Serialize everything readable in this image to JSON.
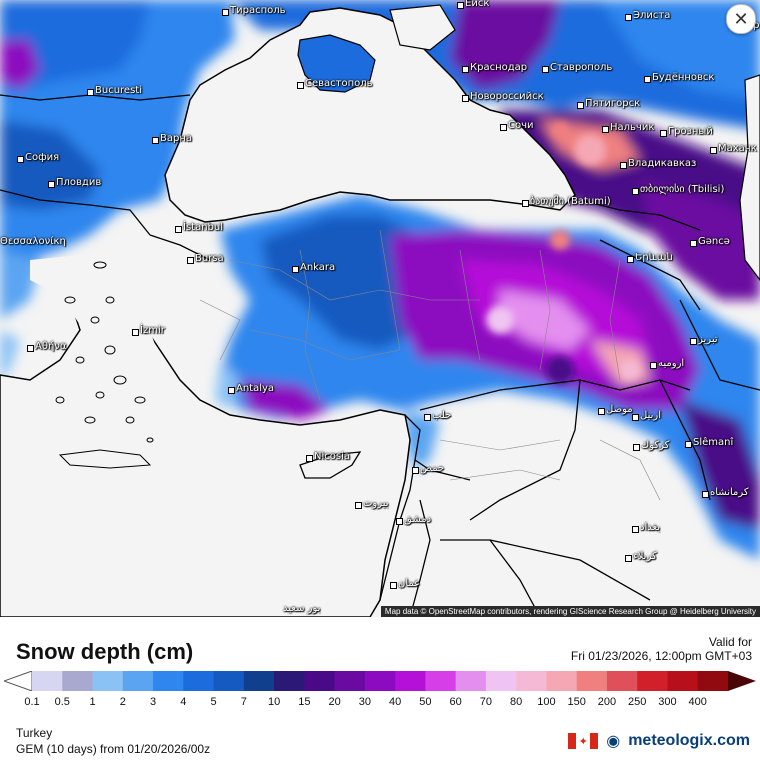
{
  "map": {
    "cities": [
      {
        "name": "Тирасполь",
        "dot": true
      },
      {
        "name": "Еиск",
        "dot": true
      },
      {
        "name": "Элиста",
        "dot": true
      },
      {
        "name": "Астр",
        "dot": false
      },
      {
        "name": "Bucuresti",
        "dot": true
      },
      {
        "name": "Севастополь",
        "dot": true
      },
      {
        "name": "Краснодар",
        "dot": true
      },
      {
        "name": "Ставрополь",
        "dot": true
      },
      {
        "name": "Будённовск",
        "dot": true
      },
      {
        "name": "Новороссийск",
        "dot": true
      },
      {
        "name": "Пятигорск",
        "dot": true
      },
      {
        "name": "Варна",
        "dot": true
      },
      {
        "name": "Сочи",
        "dot": true
      },
      {
        "name": "Нальчик",
        "dot": true
      },
      {
        "name": "Грозный",
        "dot": true
      },
      {
        "name": "Махачк",
        "dot": true
      },
      {
        "name": "София",
        "dot": true
      },
      {
        "name": "Владикавказ",
        "dot": true
      },
      {
        "name": "Пловдив",
        "dot": true
      },
      {
        "name": "ბათუმი (Batumi)",
        "dot": true
      },
      {
        "name": "თბილისი (Tbilisi)",
        "dot": true
      },
      {
        "name": "Θεσσαλονίκη",
        "dot": true
      },
      {
        "name": "İstanbul",
        "dot": true
      },
      {
        "name": "Gəncə",
        "dot": true
      },
      {
        "name": "Bursa",
        "dot": true
      },
      {
        "name": "Ankara",
        "dot": true
      },
      {
        "name": "Երևան",
        "dot": true
      },
      {
        "name": "İzmir",
        "dot": true
      },
      {
        "name": "Αθήνα",
        "dot": true
      },
      {
        "name": "تبریز",
        "dot": true
      },
      {
        "name": "Antalya",
        "dot": true
      },
      {
        "name": "حلب",
        "dot": true
      },
      {
        "name": "ارومیه",
        "dot": true
      },
      {
        "name": "موصل",
        "dot": true
      },
      {
        "name": "اربيل",
        "dot": true
      },
      {
        "name": "Nicosia",
        "dot": true
      },
      {
        "name": "حمص",
        "dot": true
      },
      {
        "name": "كركوك",
        "dot": true
      },
      {
        "name": "Slêmanî",
        "dot": true
      },
      {
        "name": "كرمانشاه",
        "dot": true
      },
      {
        "name": "بيروت",
        "dot": true
      },
      {
        "name": "دمشق",
        "dot": true
      },
      {
        "name": "بغداد",
        "dot": true
      },
      {
        "name": "كربلاء",
        "dot": true
      },
      {
        "name": "عمان",
        "dot": true
      },
      {
        "name": "بور سعيد",
        "dot": false
      }
    ],
    "attribution": "Map data © OpenStreetMap contributors, rendering GIScience Research Group @ Heidelberg University",
    "close_symbol": "✕",
    "colors": {
      "land": "#f4f4f4",
      "sea": "#f4f4f4",
      "border": "#000000"
    }
  },
  "legend": {
    "title": "Snow depth (cm)",
    "valid_label": "Valid for",
    "valid_value": "Fri 01/23/2026, 12:00pm GMT+03",
    "scale_labels": [
      "0.1",
      "0.5",
      "1",
      "2",
      "3",
      "4",
      "5",
      "7",
      "10",
      "15",
      "20",
      "30",
      "40",
      "50",
      "60",
      "70",
      "80",
      "100",
      "150",
      "200",
      "250",
      "300",
      "400"
    ],
    "scale_colors": [
      "#d6d6f2",
      "#a9a9cf",
      "#8ac2f5",
      "#5aa4f2",
      "#2f86ee",
      "#1c6cde",
      "#145ac0",
      "#0f3f8d",
      "#2a1975",
      "#4a0a88",
      "#6b0aa0",
      "#8c0ac0",
      "#b510d8",
      "#d63fe8",
      "#e48ff0",
      "#f0c4f2",
      "#f5b9d5",
      "#f5a7b4",
      "#f08080",
      "#e0505a",
      "#d1202a",
      "#b8101a",
      "#900a10",
      "#6e0a0a",
      "#4a0505"
    ],
    "region": "Turkey",
    "model": "GEM (10 days) from 01/20/2026/00z",
    "brand": "meteologix.com",
    "brand_colors": {
      "flag_red": "#d62718",
      "flag_white": "#ffffff",
      "text": "#0a3e79"
    }
  }
}
